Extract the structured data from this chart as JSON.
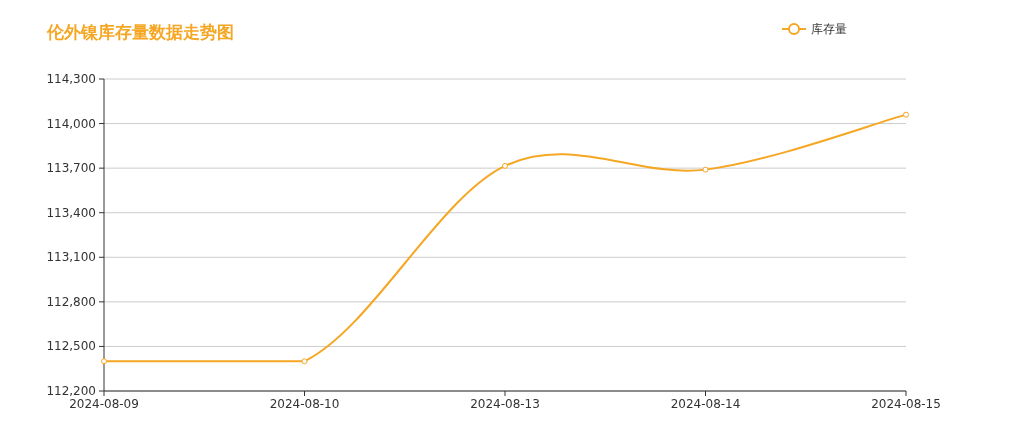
{
  "chart_data": {
    "type": "line",
    "title": "伦外镍库存量数据走势图",
    "categories": [
      "2024-08-09",
      "2024-08-10",
      "2024-08-13",
      "2024-08-14",
      "2024-08-15"
    ],
    "series": [
      {
        "name": "库存量",
        "color": "#f5a623",
        "values": [
          112400,
          112400,
          113715,
          113690,
          114060
        ]
      }
    ],
    "ylim": [
      112200,
      114300
    ],
    "yticks": [
      {
        "value": 112200,
        "label": "112,200"
      },
      {
        "value": 112500,
        "label": "112,500"
      },
      {
        "value": 112800,
        "label": "112,800"
      },
      {
        "value": 113100,
        "label": "113,100"
      },
      {
        "value": 113400,
        "label": "113,400"
      },
      {
        "value": 113700,
        "label": "113,700"
      },
      {
        "value": 114000,
        "label": "114,000"
      },
      {
        "value": 114300,
        "label": "114,300"
      }
    ],
    "grid": "y",
    "legend": "top right",
    "marker": "circle",
    "line_style": "solid"
  }
}
